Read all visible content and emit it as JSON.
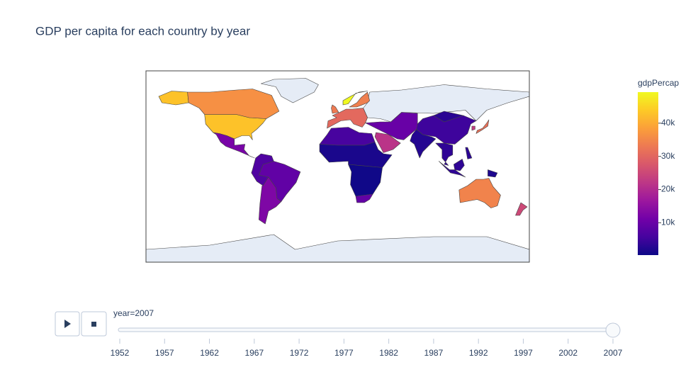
{
  "chart_data": {
    "type": "choropleth",
    "title": "GDP per capita for each country by year",
    "colorbar_title": "gdpPercap",
    "colorscale": [
      "#0d0887",
      "#46039f",
      "#7201a8",
      "#9c179e",
      "#bd3786",
      "#d8576b",
      "#ed7953",
      "#fb9f3a",
      "#fdca26",
      "#f0f921"
    ],
    "clim": [
      277,
      49357
    ],
    "cticks": [
      {
        "value": 10000,
        "label": "10k"
      },
      {
        "value": 20000,
        "label": "20k"
      },
      {
        "value": 30000,
        "label": "30k"
      },
      {
        "value": 40000,
        "label": "40k"
      }
    ],
    "values": [
      42952,
      36319,
      11978,
      9066,
      7006,
      12779,
      30470,
      33203,
      49357,
      33860,
      6000,
      1500,
      600,
      9270,
      21655,
      10000,
      2452,
      4959,
      3095,
      3500,
      3541,
      31656,
      23348,
      34435,
      25185,
      3190,
      1803
    ],
    "slider": {
      "currentvalue": "year=2007",
      "active": 2007,
      "steps": [
        1952,
        1957,
        1962,
        1967,
        1972,
        1977,
        1982,
        1987,
        1992,
        1997,
        2002,
        2007
      ]
    }
  }
}
